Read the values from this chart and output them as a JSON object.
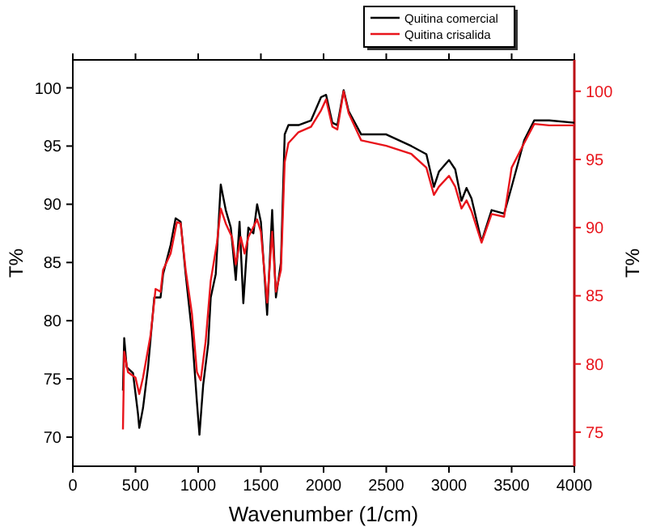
{
  "chart_data": {
    "type": "line",
    "xlabel": "Wavenumber (1/cm)",
    "ylabel": "T%",
    "y2label": "T%",
    "xlim": [
      0,
      4000
    ],
    "xticks": [
      0,
      500,
      1000,
      1500,
      2000,
      2500,
      3000,
      3500,
      4000
    ],
    "ylim": [
      67.5,
      102.4
    ],
    "yticks": [
      70,
      75,
      80,
      85,
      90,
      95,
      100
    ],
    "y2lim": [
      72.5,
      102.3
    ],
    "y2ticks": [
      75,
      80,
      85,
      90,
      95,
      100
    ],
    "legend": "top right",
    "grid": false,
    "marker": "none",
    "line_style": "solid",
    "series": [
      {
        "name": "Quitina comercial",
        "color": "#000000",
        "x": [
          400,
          410,
          430,
          480,
          520,
          530,
          560,
          600,
          650,
          700,
          720,
          780,
          820,
          860,
          900,
          950,
          990,
          1010,
          1040,
          1080,
          1100,
          1140,
          1180,
          1220,
          1260,
          1300,
          1330,
          1360,
          1400,
          1440,
          1470,
          1500,
          1550,
          1590,
          1620,
          1660,
          1690,
          1720,
          1800,
          1900,
          1980,
          2020,
          2070,
          2110,
          2160,
          2200,
          2300,
          2500,
          2700,
          2820,
          2880,
          2920,
          3000,
          3050,
          3100,
          3140,
          3180,
          3260,
          3340,
          3440,
          3500,
          3600,
          3680,
          3800,
          4000
        ],
        "values": [
          74,
          78.5,
          76,
          75.5,
          72,
          70.8,
          72.5,
          76,
          82,
          82,
          84,
          86.5,
          88.8,
          88.5,
          84,
          79,
          73,
          70.2,
          74.5,
          78,
          82,
          84,
          91.7,
          89.5,
          88,
          83.5,
          88.5,
          81.5,
          88,
          87.5,
          90,
          88.5,
          80.5,
          89.5,
          82,
          85,
          96,
          96.8,
          96.8,
          97.2,
          99.2,
          99.4,
          97,
          96.8,
          99.8,
          98,
          96,
          96,
          95,
          94.3,
          91.5,
          92.8,
          93.8,
          93,
          90.3,
          91.4,
          90.5,
          86.8,
          89.5,
          89.2,
          91.5,
          95.5,
          97.2,
          97.2,
          97
        ]
      },
      {
        "name": "Quitina crisalida",
        "color": "#e8141b",
        "axis": "y2",
        "x": [
          400,
          410,
          440,
          500,
          530,
          560,
          620,
          660,
          700,
          720,
          780,
          830,
          860,
          900,
          950,
          990,
          1020,
          1060,
          1100,
          1150,
          1180,
          1220,
          1270,
          1300,
          1340,
          1370,
          1400,
          1470,
          1500,
          1550,
          1590,
          1620,
          1660,
          1690,
          1720,
          1800,
          1900,
          1980,
          2020,
          2070,
          2110,
          2160,
          2200,
          2300,
          2500,
          2700,
          2820,
          2880,
          2920,
          3000,
          3050,
          3100,
          3140,
          3180,
          3260,
          3340,
          3440,
          3500,
          3600,
          3680,
          3800,
          4000
        ],
        "values": [
          75.2,
          80.9,
          79.4,
          79,
          77.8,
          79,
          82.1,
          85.5,
          85.3,
          86.9,
          88.1,
          90.4,
          90.3,
          86.9,
          83.7,
          79.4,
          78.8,
          81.7,
          86.1,
          88.9,
          91.4,
          90.3,
          89.3,
          87.3,
          89.3,
          88.1,
          89.3,
          90.6,
          89.7,
          84.5,
          89.7,
          85.3,
          86.9,
          94.8,
          96.2,
          97,
          97.4,
          98.6,
          99.4,
          97.4,
          97.2,
          100,
          98.4,
          96.4,
          96,
          95.4,
          94.4,
          92.4,
          93,
          93.8,
          93,
          91.4,
          92,
          91.2,
          88.9,
          91,
          90.8,
          94.4,
          96.2,
          97.6,
          97.5,
          97.5
        ]
      }
    ]
  }
}
